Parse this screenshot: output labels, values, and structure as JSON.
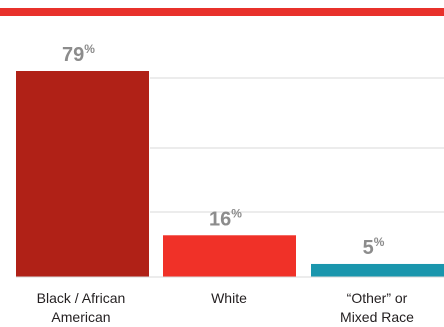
{
  "chart_data": {
    "type": "bar",
    "categories": [
      "Black / African\nAmerican",
      "White",
      "“Other” or\nMixed Race"
    ],
    "values": [
      79,
      16,
      5
    ],
    "value_suffix": "%",
    "ylim": [
      0,
      100
    ],
    "grid": true,
    "colors": {
      "top_rule": "#e8312b",
      "bars": [
        "#b02117",
        "#f03128",
        "#1a96ad"
      ],
      "gridline": "#d9d9d9",
      "value_label": "#8c8c8c"
    }
  }
}
